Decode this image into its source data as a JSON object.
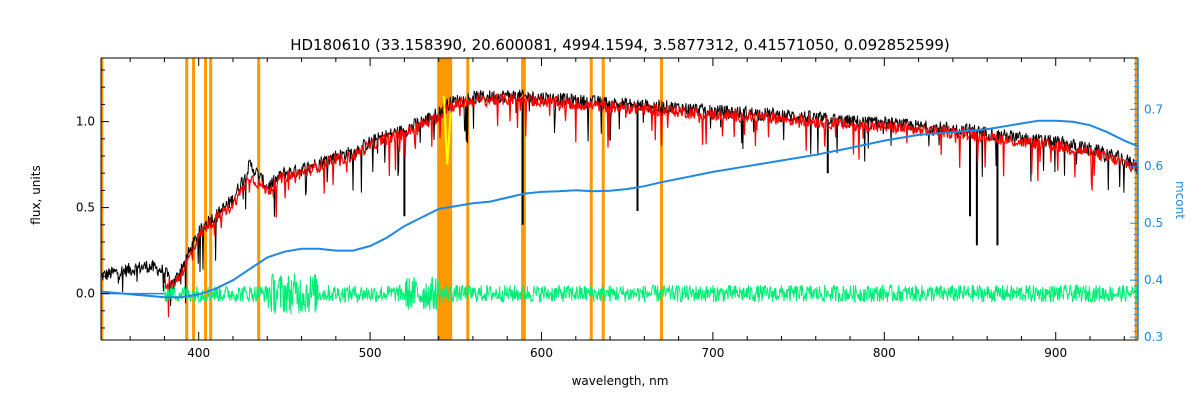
{
  "chart_data": {
    "type": "line",
    "title": "HD180610    (33.158390, 20.600081, 4994.1594, 3.5877312, 0.41571050, 0.092852599)",
    "xlabel": "wavelength, nm",
    "ylabel": "flux, units",
    "y2label": "mcont",
    "xlim": [
      343,
      948
    ],
    "ylim": [
      -0.27,
      1.37
    ],
    "y2lim": [
      0.295,
      0.79
    ],
    "xticks": [
      "400",
      "500",
      "600",
      "700",
      "800",
      "900"
    ],
    "xtick_values": [
      400,
      500,
      600,
      700,
      800,
      900
    ],
    "yticks": [
      "0.0",
      "0.5",
      "1.0"
    ],
    "ytick_values": [
      0.0,
      0.5,
      1.0
    ],
    "y2ticks": [
      "0.3",
      "0.4",
      "0.5",
      "0.6",
      "0.7"
    ],
    "y2tick_values": [
      0.3,
      0.4,
      0.5,
      0.6,
      0.7
    ],
    "grid": false,
    "legend": "none",
    "colors": {
      "observed": "#000000",
      "model": "#ff0000",
      "residual": "#00ee77",
      "mcont": "#1e88e5",
      "masked_lines": "#ff9900",
      "highlight": "#ffff00"
    },
    "series": [
      {
        "key": "observed",
        "x": [
          343,
          350,
          360,
          370,
          380,
          385,
          390,
          395,
          400,
          405,
          410,
          420,
          430,
          440,
          450,
          460,
          470,
          480,
          490,
          500,
          510,
          520,
          530,
          540,
          545,
          550,
          560,
          580,
          600,
          620,
          650,
          680,
          700,
          720,
          750,
          780,
          800,
          820,
          850,
          880,
          900,
          920,
          940,
          948
        ],
        "y": [
          0.1,
          0.12,
          0.14,
          0.16,
          0.13,
          0.05,
          0.15,
          0.25,
          0.35,
          0.42,
          0.45,
          0.55,
          0.75,
          0.62,
          0.7,
          0.72,
          0.76,
          0.8,
          0.82,
          0.88,
          0.92,
          0.95,
          1.0,
          1.05,
          1.1,
          1.12,
          1.14,
          1.15,
          1.14,
          1.12,
          1.1,
          1.08,
          1.06,
          1.05,
          1.03,
          1.0,
          0.99,
          0.97,
          0.95,
          0.9,
          0.88,
          0.84,
          0.78,
          0.74
        ]
      },
      {
        "key": "model",
        "x": [
          380,
          385,
          390,
          395,
          400,
          405,
          410,
          420,
          430,
          440,
          450,
          460,
          470,
          480,
          490,
          500,
          510,
          520,
          530,
          540,
          545,
          550,
          560,
          580,
          600,
          620,
          650,
          680,
          700,
          720,
          750,
          780,
          800,
          820,
          850,
          880,
          900,
          920,
          940,
          948
        ],
        "y": [
          0.06,
          0.05,
          0.12,
          0.22,
          0.33,
          0.4,
          0.43,
          0.52,
          0.68,
          0.6,
          0.68,
          0.7,
          0.74,
          0.78,
          0.8,
          0.86,
          0.9,
          0.93,
          0.98,
          1.03,
          1.08,
          1.1,
          1.12,
          1.13,
          1.12,
          1.1,
          1.08,
          1.06,
          1.04,
          1.03,
          1.01,
          0.98,
          0.97,
          0.95,
          0.93,
          0.88,
          0.86,
          0.82,
          0.76,
          0.72
        ]
      },
      {
        "key": "residual",
        "x": [
          380,
          400,
          420,
          440,
          460,
          480,
          500,
          520,
          540,
          560,
          580,
          600,
          620,
          640,
          660,
          680,
          700,
          720,
          740,
          760,
          780,
          800,
          820,
          840,
          860,
          880,
          900,
          920,
          940,
          948
        ],
        "y": [
          0.0,
          0.0,
          0.0,
          0.0,
          0.0,
          0.0,
          0.0,
          0.0,
          0.0,
          0.0,
          0.0,
          0.0,
          0.0,
          0.0,
          0.0,
          0.0,
          0.0,
          0.0,
          0.0,
          0.0,
          0.0,
          0.0,
          0.0,
          0.0,
          0.0,
          0.0,
          0.0,
          0.0,
          0.0,
          0.0
        ]
      },
      {
        "key": "mcont",
        "axis": "y2",
        "x": [
          343,
          380,
          390,
          400,
          410,
          420,
          430,
          440,
          450,
          460,
          470,
          480,
          490,
          500,
          510,
          520,
          530,
          540,
          550,
          560,
          570,
          580,
          590,
          600,
          610,
          620,
          630,
          640,
          650,
          660,
          670,
          680,
          700,
          720,
          740,
          760,
          780,
          800,
          820,
          840,
          860,
          880,
          890,
          900,
          910,
          920,
          930,
          940,
          948
        ],
        "y": [
          0.38,
          0.37,
          0.37,
          0.375,
          0.385,
          0.4,
          0.42,
          0.44,
          0.45,
          0.455,
          0.455,
          0.452,
          0.452,
          0.46,
          0.475,
          0.495,
          0.51,
          0.525,
          0.53,
          0.535,
          0.538,
          0.545,
          0.552,
          0.555,
          0.556,
          0.558,
          0.556,
          0.557,
          0.56,
          0.565,
          0.572,
          0.578,
          0.59,
          0.6,
          0.61,
          0.62,
          0.632,
          0.645,
          0.655,
          0.66,
          0.665,
          0.675,
          0.68,
          0.68,
          0.678,
          0.672,
          0.66,
          0.645,
          0.635
        ]
      }
    ],
    "masked_wavelengths": [
      343.5,
      393,
      397,
      404,
      407,
      435,
      540,
      541,
      542,
      543,
      544,
      545,
      546,
      547,
      557,
      589,
      590,
      629,
      636,
      670,
      947
    ]
  }
}
